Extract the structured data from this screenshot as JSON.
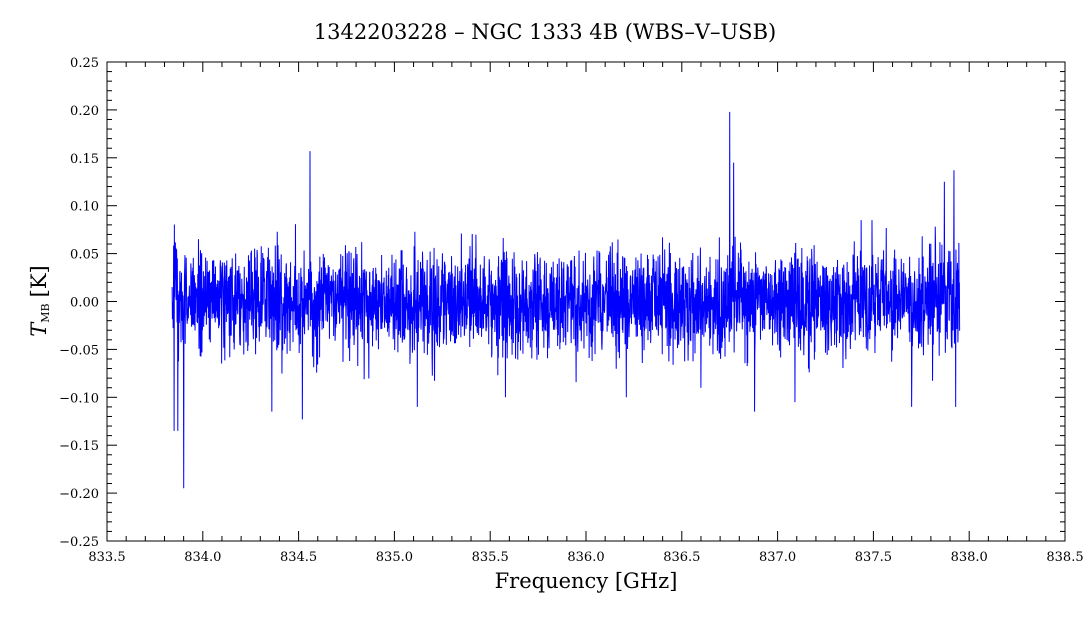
{
  "chart_data": {
    "type": "line",
    "title": "1342203228 – NGC 1333 4B (WBS–V–USB)",
    "xlabel": "Frequency [GHz]",
    "ylabel_main": "T",
    "ylabel_sub": "MB",
    "ylabel_unit": "[K]",
    "xlim": [
      833.5,
      838.5
    ],
    "ylim": [
      -0.25,
      0.25
    ],
    "x_ticks": [
      "833.5",
      "834.0",
      "834.5",
      "835.0",
      "835.5",
      "836.0",
      "836.5",
      "837.0",
      "837.5",
      "838.0",
      "838.5"
    ],
    "y_ticks": [
      "−0.25",
      "−0.20",
      "−0.15",
      "−0.10",
      "−0.05",
      "0.00",
      "0.05",
      "0.10",
      "0.15",
      "0.20",
      "0.25"
    ],
    "grid": false,
    "legend": "none",
    "series": [
      {
        "color": "#0000ff",
        "x_start": 833.84,
        "x_end": 837.95,
        "noise_rms": 0.03,
        "features": [
          {
            "x": 833.85,
            "y": -0.135
          },
          {
            "x": 833.87,
            "y": -0.135
          },
          {
            "x": 833.9,
            "y": -0.195
          },
          {
            "x": 834.36,
            "y": -0.115
          },
          {
            "x": 834.52,
            "y": -0.123
          },
          {
            "x": 834.56,
            "y": 0.157
          },
          {
            "x": 835.12,
            "y": -0.11
          },
          {
            "x": 835.58,
            "y": -0.1
          },
          {
            "x": 836.21,
            "y": -0.1
          },
          {
            "x": 836.6,
            "y": -0.09
          },
          {
            "x": 836.75,
            "y": 0.198
          },
          {
            "x": 836.77,
            "y": 0.145
          },
          {
            "x": 836.88,
            "y": -0.115
          },
          {
            "x": 837.09,
            "y": -0.105
          },
          {
            "x": 837.7,
            "y": -0.11
          },
          {
            "x": 837.87,
            "y": 0.125
          },
          {
            "x": 837.92,
            "y": 0.137
          },
          {
            "x": 837.93,
            "y": -0.11
          }
        ]
      }
    ]
  }
}
